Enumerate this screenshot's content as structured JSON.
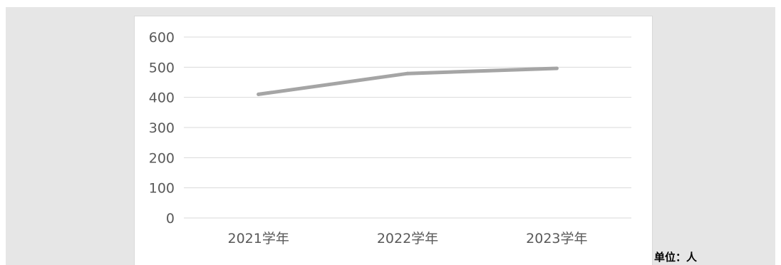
{
  "chart_data": {
    "type": "line",
    "categories": [
      "2021学年",
      "2022学年",
      "2023学年"
    ],
    "series": [
      {
        "values": [
          410,
          479,
          496
        ],
        "color": "#a5a5a5"
      }
    ],
    "ylim": [
      0,
      600
    ],
    "yticks": [
      0,
      100,
      200,
      300,
      400,
      500,
      600
    ],
    "grid": true,
    "legend": "none",
    "colors": {
      "grid": "#d9d9d9",
      "tick_text": "#595959"
    }
  },
  "unit_label": "单位：人"
}
